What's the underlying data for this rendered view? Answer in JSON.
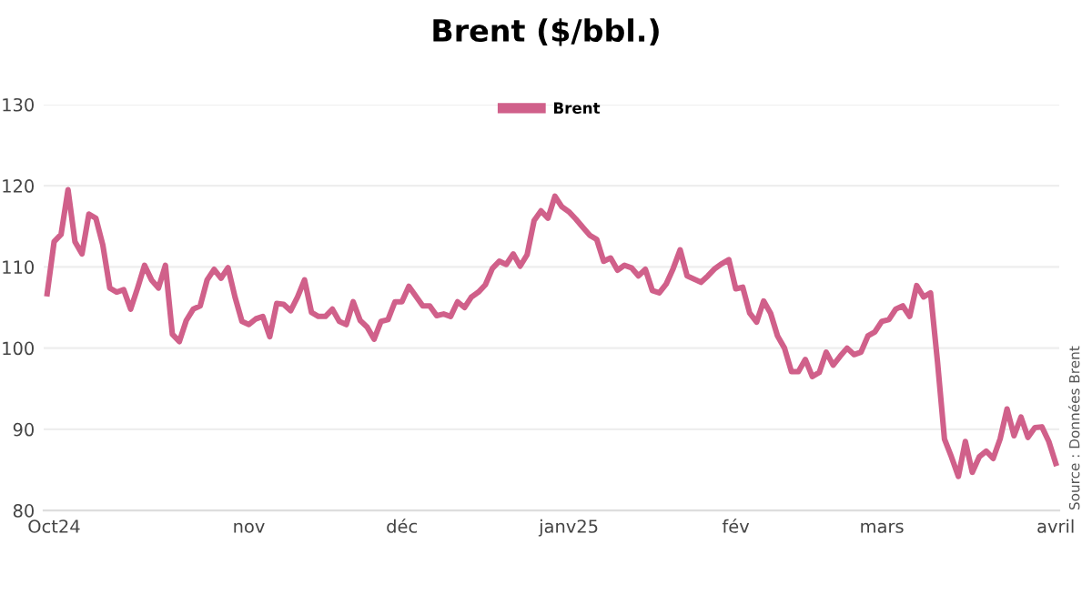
{
  "chart_data": {
    "type": "line",
    "title": "Brent ($/bbl.)",
    "categories": [
      null,
      "Oct24",
      null,
      null,
      null,
      null,
      null,
      null,
      null,
      null,
      null,
      null,
      null,
      null,
      null,
      null,
      null,
      null,
      null,
      null,
      null,
      null,
      null,
      null,
      null,
      null,
      null,
      null,
      null,
      "nov",
      null,
      null,
      null,
      null,
      null,
      null,
      null,
      null,
      null,
      null,
      null,
      null,
      null,
      null,
      null,
      null,
      null,
      null,
      null,
      null,
      null,
      "déc",
      null,
      null,
      null,
      null,
      null,
      null,
      null,
      null,
      null,
      null,
      null,
      null,
      null,
      null,
      null,
      null,
      null,
      null,
      null,
      null,
      null,
      null,
      null,
      "janv25",
      null,
      null,
      null,
      null,
      null,
      null,
      null,
      null,
      null,
      null,
      null,
      null,
      null,
      null,
      null,
      null,
      null,
      null,
      null,
      null,
      null,
      null,
      null,
      "fév",
      null,
      null,
      null,
      null,
      null,
      null,
      null,
      null,
      null,
      null,
      null,
      null,
      null,
      null,
      null,
      null,
      null,
      null,
      null,
      null,
      "mars",
      null,
      null,
      null,
      null,
      null,
      null,
      null,
      null,
      null,
      null,
      null,
      null,
      null,
      null,
      null,
      null,
      null,
      null,
      null,
      null,
      null,
      null,
      null,
      null,
      "avril"
    ],
    "series": [
      {
        "name": "Brent",
        "color": "#d0608a",
        "values": [
          106.7,
          113.1,
          114.0,
          119.5,
          113.1,
          111.6,
          116.5,
          116.0,
          112.7,
          107.4,
          106.9,
          107.2,
          104.8,
          107.4,
          110.2,
          108.4,
          107.4,
          110.2,
          101.7,
          100.8,
          103.4,
          104.8,
          105.2,
          108.4,
          109.7,
          108.6,
          109.9,
          106.3,
          103.3,
          102.9,
          103.6,
          103.9,
          101.4,
          105.5,
          105.4,
          104.6,
          106.3,
          108.4,
          104.4,
          103.9,
          103.9,
          104.8,
          103.3,
          102.9,
          105.7,
          103.4,
          102.6,
          101.1,
          103.3,
          103.5,
          105.7,
          105.7,
          107.6,
          106.4,
          105.2,
          105.2,
          104.0,
          104.2,
          103.9,
          105.7,
          105.0,
          106.3,
          106.9,
          107.8,
          109.8,
          110.7,
          110.3,
          111.6,
          110.1,
          111.5,
          115.7,
          116.9,
          116.0,
          118.7,
          117.4,
          116.8,
          115.9,
          114.9,
          113.9,
          113.4,
          110.7,
          111.1,
          109.6,
          110.2,
          109.9,
          108.9,
          109.7,
          107.1,
          106.8,
          107.9,
          109.8,
          112.1,
          108.9,
          108.5,
          108.1,
          108.9,
          109.8,
          110.4,
          110.9,
          107.3,
          107.5,
          104.3,
          103.2,
          105.8,
          104.3,
          101.5,
          100.0,
          97.1,
          97.1,
          98.6,
          96.5,
          97.0,
          99.5,
          97.9,
          99.0,
          100.0,
          99.2,
          99.5,
          101.5,
          102.0,
          103.3,
          103.5,
          104.8,
          105.2,
          103.9,
          107.7,
          106.3,
          106.8,
          98.3,
          88.8,
          86.6,
          84.2,
          88.5,
          84.7,
          86.6,
          87.3,
          86.4,
          88.8,
          92.5,
          89.2,
          91.5,
          89.0,
          90.2,
          90.3,
          88.5,
          85.8
        ]
      }
    ],
    "ylim": [
      80,
      130
    ],
    "yticks": [
      80,
      90,
      100,
      110,
      120,
      130
    ],
    "grid": "y",
    "legend": "top",
    "marker": "none",
    "line_style": "solid",
    "annotations": [
      "Source : Données Brent"
    ]
  }
}
